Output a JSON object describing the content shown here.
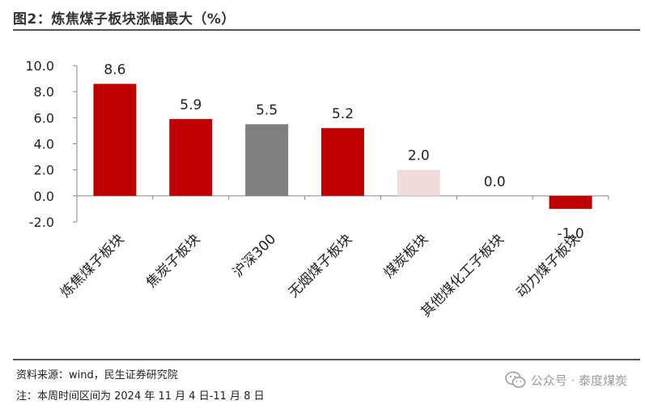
{
  "title": "图2：炼焦煤子板块涨幅最大（%）",
  "chart_data": {
    "type": "bar",
    "categories": [
      "炼焦煤子板块",
      "焦炭子板块",
      "沪深300",
      "无烟煤子板块",
      "煤炭板块",
      "其他煤化工子板块",
      "动力煤子板块"
    ],
    "values": [
      8.6,
      5.9,
      5.5,
      5.2,
      2.0,
      0.0,
      -1.0
    ],
    "value_labels": [
      "8.6",
      "5.9",
      "5.5",
      "5.2",
      "2.0",
      "0.0",
      "-1.0"
    ],
    "bar_colors": [
      "#C00000",
      "#C00000",
      "#7F7F7F",
      "#C00000",
      "#F2DCDB",
      "#C00000",
      "#C00000"
    ],
    "ylim": [
      -2.0,
      10.0
    ],
    "yticks": [
      "10.0",
      "8.0",
      "6.0",
      "4.0",
      "2.0",
      "0.0",
      "-2.0"
    ],
    "ytick_values": [
      10,
      8,
      6,
      4,
      2,
      0,
      -2
    ],
    "grid": false,
    "legend": "none"
  },
  "footer": {
    "source": "资料来源：wind，民生证券研究院",
    "note": "注：本周时间区间为 2024 年 11 月 4 日-11 月 8 日"
  },
  "watermark": {
    "text": "公众号 · 泰度煤炭",
    "icon": "wechat-icon"
  }
}
